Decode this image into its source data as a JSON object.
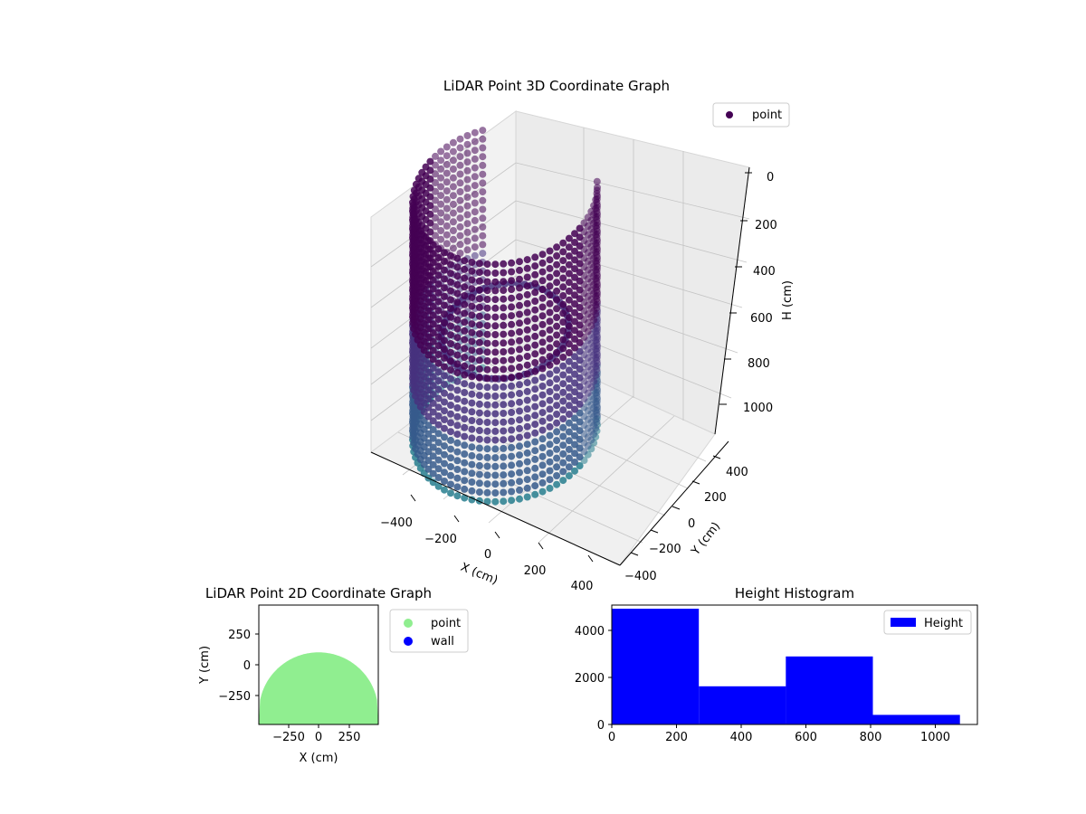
{
  "chart_data": [
    {
      "type": "scatter3d",
      "title": "LiDAR Point 3D Coordinate Graph",
      "xlabel": "X (cm)",
      "ylabel": "Y (cm)",
      "zlabel": "H (cm)",
      "xlim": [
        -480,
        480
      ],
      "ylim": [
        -480,
        480
      ],
      "zlim": [
        1100,
        0
      ],
      "x_ticks": [
        "−400",
        "−200",
        "0",
        "200",
        "400"
      ],
      "y_ticks": [
        "−400",
        "−200",
        "0",
        "200",
        "400"
      ],
      "z_ticks": [
        "0",
        "200",
        "400",
        "600",
        "800",
        "1000"
      ],
      "grid": true,
      "legend": {
        "position": "top-right",
        "entries": [
          "point"
        ]
      },
      "colormap": "viridis (by height)",
      "series": [
        {
          "name": "point",
          "color": "#440154",
          "shape": "circular wall, radius ≈ 480 cm, open toward −Y",
          "radius": 480,
          "height_range": [
            0,
            1080
          ],
          "angle_range_deg": [
            -220,
            40
          ]
        }
      ]
    },
    {
      "type": "scatter",
      "title": "LiDAR Point 2D Coordinate Graph",
      "xlabel": "X (cm)",
      "ylabel": "Y (cm)",
      "xlim": [
        -480,
        480
      ],
      "ylim": [
        -480,
        480
      ],
      "x_ticks": [
        "−250",
        "0",
        "250"
      ],
      "y_ticks": [
        "250",
        "0",
        "−250"
      ],
      "legend": {
        "position": "outside-right",
        "entries": [
          "point",
          "wall"
        ]
      },
      "series": [
        {
          "name": "point",
          "color": "#90ee90",
          "shape": "filled region below circle, radius ≈ 480 cm centered at (0, −380)"
        },
        {
          "name": "wall",
          "color": "#0000ff"
        }
      ]
    },
    {
      "type": "bar",
      "title": "Height Histogram",
      "xlabel": "",
      "ylabel": "",
      "xlim": [
        0,
        1130
      ],
      "ylim": [
        0,
        5000
      ],
      "x_ticks": [
        "0",
        "200",
        "400",
        "600",
        "800",
        "1000"
      ],
      "y_ticks": [
        "0",
        "2000",
        "4000"
      ],
      "legend": {
        "position": "top-right",
        "entries": [
          "Height"
        ]
      },
      "series": [
        {
          "name": "Height",
          "color": "#0000ff",
          "bins": [
            {
              "x0": 0,
              "x1": 269,
              "count": 4850
            },
            {
              "x0": 269,
              "x1": 538,
              "count": 1600
            },
            {
              "x0": 538,
              "x1": 807,
              "count": 2850
            },
            {
              "x0": 807,
              "x1": 1076,
              "count": 400
            }
          ]
        }
      ]
    }
  ]
}
